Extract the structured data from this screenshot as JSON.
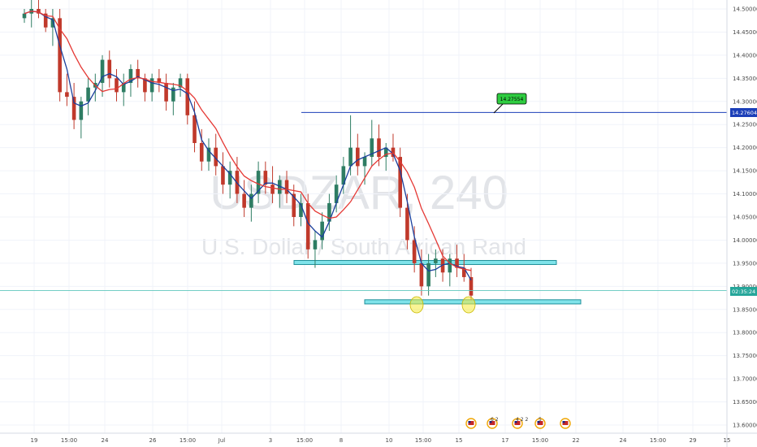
{
  "chart_data": {
    "type": "candlestick",
    "watermark": {
      "symbol": "USDZAR, 240",
      "name": "U.S. Dollar / South African Rand"
    },
    "y_axis": {
      "ticks": [
        "14.50000",
        "14.45000",
        "14.40000",
        "14.35000",
        "14.30000",
        "14.25000",
        "14.20000",
        "14.15000",
        "14.10000",
        "14.05000",
        "14.00000",
        "13.95000",
        "13.90000",
        "13.85000",
        "13.80000",
        "13.75000",
        "13.70000",
        "13.65000",
        "13.60000"
      ],
      "ylim": [
        13.59,
        14.515
      ]
    },
    "x_axis": {
      "ticks": [
        "19",
        "15:00",
        "24",
        "26",
        "15:00",
        "Jul",
        "3",
        "15:00",
        "8",
        "10",
        "15:00",
        "15",
        "17",
        "15:00",
        "22",
        "24",
        "15:00",
        "29",
        "15"
      ]
    },
    "price_labels": {
      "resistance_line": "14.27604",
      "current_time": "02:35:24",
      "callout": "14.27554"
    },
    "levels": {
      "resistance": 14.276,
      "current": 13.891
    },
    "zones": [
      {
        "name": "upper-support-zone",
        "low": 13.948,
        "high": 13.956
      },
      {
        "name": "lower-support-zone",
        "low": 13.862,
        "high": 13.871
      }
    ],
    "series": [
      {
        "name": "",
        "role": "fast-ma",
        "color": "#1a3f9c"
      },
      {
        "name": "",
        "role": "slow-ma",
        "color": "#e53935"
      }
    ],
    "events": [
      "",
      "6 2",
      "4 2 2",
      "5",
      ""
    ],
    "candles": [
      [
        14.48,
        14.5,
        14.47,
        14.49
      ],
      [
        14.49,
        14.52,
        14.46,
        14.5
      ],
      [
        14.5,
        14.52,
        14.48,
        14.49
      ],
      [
        14.49,
        14.5,
        14.45,
        14.46
      ],
      [
        14.46,
        14.5,
        14.42,
        14.48
      ],
      [
        14.48,
        14.5,
        14.3,
        14.32
      ],
      [
        14.32,
        14.36,
        14.29,
        14.31
      ],
      [
        14.31,
        14.34,
        14.24,
        14.26
      ],
      [
        14.26,
        14.31,
        14.22,
        14.3
      ],
      [
        14.3,
        14.35,
        14.27,
        14.33
      ],
      [
        14.33,
        14.36,
        14.3,
        14.34
      ],
      [
        14.34,
        14.4,
        14.31,
        14.39
      ],
      [
        14.39,
        14.41,
        14.33,
        14.35
      ],
      [
        14.35,
        14.37,
        14.3,
        14.32
      ],
      [
        14.32,
        14.36,
        14.29,
        14.34
      ],
      [
        14.34,
        14.38,
        14.31,
        14.37
      ],
      [
        14.37,
        14.39,
        14.33,
        14.35
      ],
      [
        14.35,
        14.36,
        14.3,
        14.32
      ],
      [
        14.32,
        14.36,
        14.3,
        14.35
      ],
      [
        14.35,
        14.37,
        14.32,
        14.34
      ],
      [
        14.34,
        14.36,
        14.28,
        14.3
      ],
      [
        14.3,
        14.34,
        14.27,
        14.33
      ],
      [
        14.33,
        14.36,
        14.31,
        14.35
      ],
      [
        14.35,
        14.36,
        14.25,
        14.27
      ],
      [
        14.27,
        14.3,
        14.19,
        14.21
      ],
      [
        14.21,
        14.24,
        14.15,
        14.17
      ],
      [
        14.17,
        14.22,
        14.15,
        14.2
      ],
      [
        14.2,
        14.23,
        14.14,
        14.16
      ],
      [
        14.16,
        14.19,
        14.1,
        14.12
      ],
      [
        14.12,
        14.17,
        14.09,
        14.15
      ],
      [
        14.15,
        14.18,
        14.08,
        14.1
      ],
      [
        14.1,
        14.13,
        14.05,
        14.07
      ],
      [
        14.07,
        14.12,
        14.04,
        14.1
      ],
      [
        14.1,
        14.17,
        14.08,
        14.15
      ],
      [
        14.15,
        14.17,
        14.1,
        14.12
      ],
      [
        14.12,
        14.16,
        14.08,
        14.1
      ],
      [
        14.1,
        14.14,
        14.07,
        14.13
      ],
      [
        14.13,
        14.15,
        14.08,
        14.1
      ],
      [
        14.1,
        14.12,
        14.03,
        14.05
      ],
      [
        14.05,
        14.1,
        14.03,
        14.08
      ],
      [
        14.08,
        14.1,
        13.96,
        13.98
      ],
      [
        13.98,
        14.02,
        13.94,
        14.0
      ],
      [
        14.0,
        14.06,
        13.98,
        14.04
      ],
      [
        14.04,
        14.1,
        14.02,
        14.08
      ],
      [
        14.08,
        14.14,
        14.06,
        14.12
      ],
      [
        14.12,
        14.18,
        14.1,
        14.16
      ],
      [
        14.16,
        14.27,
        14.14,
        14.2
      ],
      [
        14.2,
        14.23,
        14.14,
        14.16
      ],
      [
        14.16,
        14.19,
        14.12,
        14.18
      ],
      [
        14.18,
        14.26,
        14.16,
        14.22
      ],
      [
        14.22,
        14.25,
        14.16,
        14.18
      ],
      [
        14.18,
        14.21,
        14.15,
        14.2
      ],
      [
        14.2,
        14.23,
        14.17,
        14.18
      ],
      [
        14.18,
        14.2,
        14.05,
        14.07
      ],
      [
        14.07,
        14.1,
        13.98,
        14.0
      ],
      [
        14.0,
        14.03,
        13.93,
        13.95
      ],
      [
        13.95,
        13.98,
        13.88,
        13.9
      ],
      [
        13.9,
        13.97,
        13.88,
        13.95
      ],
      [
        13.95,
        13.98,
        13.92,
        13.96
      ],
      [
        13.96,
        13.98,
        13.91,
        13.93
      ],
      [
        13.93,
        13.97,
        13.9,
        13.96
      ],
      [
        13.96,
        13.99,
        13.92,
        13.94
      ],
      [
        13.94,
        13.97,
        13.91,
        13.92
      ],
      [
        13.92,
        13.94,
        13.87,
        13.88
      ]
    ]
  }
}
